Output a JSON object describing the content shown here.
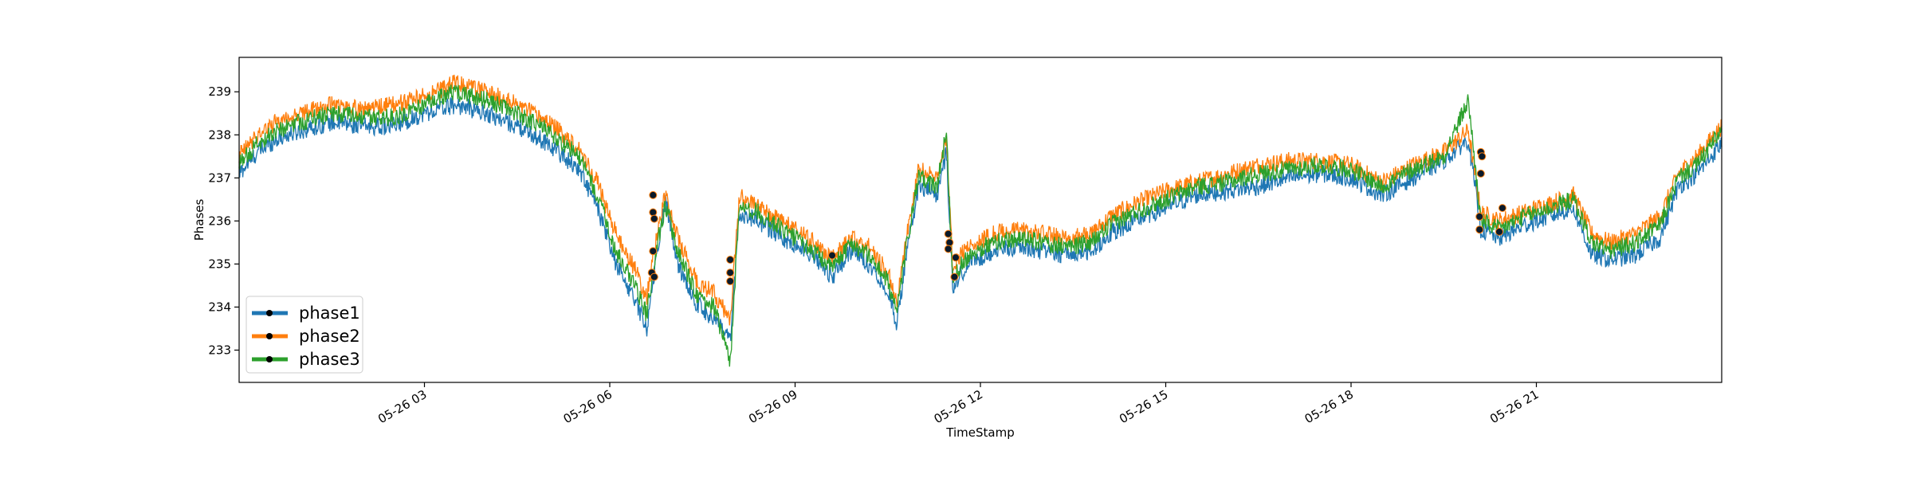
{
  "chart_data": {
    "type": "line",
    "xlabel": "TimeStamp",
    "ylabel": "Phases",
    "xlim": [
      "2023-05-26T00:00",
      "2023-05-26T23:59"
    ],
    "ylim": [
      232.25,
      239.8
    ],
    "xticks": [
      {
        "t": 3,
        "label": "05-26 03"
      },
      {
        "t": 6,
        "label": "05-26 06"
      },
      {
        "t": 9,
        "label": "05-26 09"
      },
      {
        "t": 12,
        "label": "05-26 12"
      },
      {
        "t": 15,
        "label": "05-26 15"
      },
      {
        "t": 18,
        "label": "05-26 18"
      },
      {
        "t": 21,
        "label": "05-26 21"
      }
    ],
    "yticks": [
      233,
      234,
      235,
      236,
      237,
      238,
      239
    ],
    "grid": false,
    "legend_position": "lower-left",
    "series": [
      {
        "name": "phase1",
        "color": "#1f77b4",
        "values": [
          [
            0.0,
            237.1
          ],
          [
            0.3,
            237.6
          ],
          [
            0.6,
            237.9
          ],
          [
            1.0,
            238.1
          ],
          [
            1.5,
            238.3
          ],
          [
            2.0,
            238.2
          ],
          [
            2.5,
            238.2
          ],
          [
            3.0,
            238.5
          ],
          [
            3.5,
            238.7
          ],
          [
            4.0,
            238.5
          ],
          [
            4.5,
            238.2
          ],
          [
            5.0,
            237.8
          ],
          [
            5.5,
            237.2
          ],
          [
            5.8,
            236.3
          ],
          [
            6.1,
            235.0
          ],
          [
            6.4,
            234.2
          ],
          [
            6.6,
            233.5
          ],
          [
            6.7,
            234.6
          ],
          [
            6.9,
            236.5
          ],
          [
            7.1,
            235.0
          ],
          [
            7.4,
            234.1
          ],
          [
            7.7,
            233.7
          ],
          [
            7.95,
            233.2
          ],
          [
            8.1,
            236.2
          ],
          [
            8.4,
            236.0
          ],
          [
            8.8,
            235.6
          ],
          [
            9.3,
            235.2
          ],
          [
            9.6,
            234.7
          ],
          [
            9.9,
            235.3
          ],
          [
            10.2,
            235.0
          ],
          [
            10.5,
            234.4
          ],
          [
            10.65,
            233.6
          ],
          [
            10.8,
            235.2
          ],
          [
            11.0,
            236.8
          ],
          [
            11.3,
            236.6
          ],
          [
            11.45,
            237.6
          ],
          [
            11.55,
            234.5
          ],
          [
            11.8,
            235.0
          ],
          [
            12.2,
            235.3
          ],
          [
            12.6,
            235.4
          ],
          [
            13.0,
            235.3
          ],
          [
            13.4,
            235.2
          ],
          [
            13.8,
            235.3
          ],
          [
            14.1,
            235.7
          ],
          [
            14.5,
            236.0
          ],
          [
            15.0,
            236.3
          ],
          [
            15.5,
            236.6
          ],
          [
            16.0,
            236.7
          ],
          [
            16.5,
            236.8
          ],
          [
            17.0,
            237.0
          ],
          [
            17.5,
            237.1
          ],
          [
            18.0,
            237.0
          ],
          [
            18.5,
            236.6
          ],
          [
            19.0,
            237.0
          ],
          [
            19.5,
            237.4
          ],
          [
            19.9,
            237.9
          ],
          [
            20.1,
            235.8
          ],
          [
            20.4,
            235.6
          ],
          [
            20.8,
            235.9
          ],
          [
            21.2,
            236.1
          ],
          [
            21.6,
            236.3
          ],
          [
            21.9,
            235.2
          ],
          [
            22.2,
            235.1
          ],
          [
            22.6,
            235.2
          ],
          [
            23.0,
            235.6
          ],
          [
            23.3,
            236.8
          ],
          [
            23.6,
            237.1
          ],
          [
            24.0,
            237.8
          ]
        ]
      },
      {
        "name": "phase2",
        "color": "#ff7f0e",
        "values": [
          [
            0.0,
            237.5
          ],
          [
            0.3,
            238.0
          ],
          [
            0.6,
            238.3
          ],
          [
            1.0,
            238.5
          ],
          [
            1.5,
            238.7
          ],
          [
            2.0,
            238.6
          ],
          [
            2.5,
            238.7
          ],
          [
            3.0,
            238.9
          ],
          [
            3.5,
            239.2
          ],
          [
            4.0,
            239.0
          ],
          [
            4.5,
            238.7
          ],
          [
            5.0,
            238.3
          ],
          [
            5.5,
            237.7
          ],
          [
            5.8,
            236.9
          ],
          [
            6.1,
            235.7
          ],
          [
            6.4,
            234.9
          ],
          [
            6.6,
            234.2
          ],
          [
            6.7,
            235.2
          ],
          [
            6.9,
            236.6
          ],
          [
            7.1,
            235.6
          ],
          [
            7.4,
            234.6
          ],
          [
            7.7,
            234.3
          ],
          [
            7.95,
            233.7
          ],
          [
            8.1,
            236.6
          ],
          [
            8.4,
            236.3
          ],
          [
            8.8,
            236.0
          ],
          [
            9.3,
            235.5
          ],
          [
            9.6,
            235.1
          ],
          [
            9.9,
            235.6
          ],
          [
            10.2,
            235.4
          ],
          [
            10.5,
            234.8
          ],
          [
            10.65,
            234.1
          ],
          [
            10.8,
            235.6
          ],
          [
            11.0,
            237.2
          ],
          [
            11.3,
            237.0
          ],
          [
            11.45,
            237.9
          ],
          [
            11.55,
            235.0
          ],
          [
            11.8,
            235.4
          ],
          [
            12.2,
            235.7
          ],
          [
            12.6,
            235.8
          ],
          [
            13.0,
            235.7
          ],
          [
            13.4,
            235.6
          ],
          [
            13.8,
            235.7
          ],
          [
            14.1,
            236.1
          ],
          [
            14.5,
            236.4
          ],
          [
            15.0,
            236.7
          ],
          [
            15.5,
            236.9
          ],
          [
            16.0,
            237.1
          ],
          [
            16.5,
            237.3
          ],
          [
            17.0,
            237.4
          ],
          [
            17.5,
            237.4
          ],
          [
            18.0,
            237.3
          ],
          [
            18.5,
            236.9
          ],
          [
            19.0,
            237.3
          ],
          [
            19.5,
            237.6
          ],
          [
            19.9,
            238.1
          ],
          [
            20.1,
            236.2
          ],
          [
            20.4,
            236.0
          ],
          [
            20.8,
            236.2
          ],
          [
            21.2,
            236.4
          ],
          [
            21.6,
            236.6
          ],
          [
            21.9,
            235.7
          ],
          [
            22.2,
            235.5
          ],
          [
            22.6,
            235.7
          ],
          [
            23.0,
            236.1
          ],
          [
            23.3,
            237.1
          ],
          [
            23.6,
            237.5
          ],
          [
            24.0,
            238.2
          ]
        ]
      },
      {
        "name": "phase3",
        "color": "#2ca02c",
        "values": [
          [
            0.0,
            237.3
          ],
          [
            0.3,
            237.8
          ],
          [
            0.6,
            238.1
          ],
          [
            1.0,
            238.3
          ],
          [
            1.5,
            238.5
          ],
          [
            2.0,
            238.4
          ],
          [
            2.5,
            238.4
          ],
          [
            3.0,
            238.7
          ],
          [
            3.5,
            239.0
          ],
          [
            4.0,
            238.8
          ],
          [
            4.5,
            238.5
          ],
          [
            5.0,
            238.1
          ],
          [
            5.5,
            237.5
          ],
          [
            5.8,
            236.6
          ],
          [
            6.1,
            235.3
          ],
          [
            6.4,
            234.5
          ],
          [
            6.6,
            233.8
          ],
          [
            6.7,
            234.9
          ],
          [
            6.9,
            236.4
          ],
          [
            7.1,
            235.3
          ],
          [
            7.4,
            234.3
          ],
          [
            7.7,
            234.0
          ],
          [
            7.95,
            232.7
          ],
          [
            8.1,
            236.4
          ],
          [
            8.4,
            236.2
          ],
          [
            8.8,
            235.8
          ],
          [
            9.3,
            235.3
          ],
          [
            9.6,
            234.9
          ],
          [
            9.9,
            235.5
          ],
          [
            10.2,
            235.2
          ],
          [
            10.5,
            234.6
          ],
          [
            10.65,
            233.9
          ],
          [
            10.8,
            235.4
          ],
          [
            11.0,
            237.0
          ],
          [
            11.3,
            236.8
          ],
          [
            11.45,
            238.1
          ],
          [
            11.55,
            234.7
          ],
          [
            11.8,
            235.2
          ],
          [
            12.2,
            235.5
          ],
          [
            12.6,
            235.6
          ],
          [
            13.0,
            235.5
          ],
          [
            13.4,
            235.4
          ],
          [
            13.8,
            235.5
          ],
          [
            14.1,
            235.9
          ],
          [
            14.5,
            236.2
          ],
          [
            15.0,
            236.5
          ],
          [
            15.5,
            236.8
          ],
          [
            16.0,
            236.9
          ],
          [
            16.5,
            237.1
          ],
          [
            17.0,
            237.2
          ],
          [
            17.5,
            237.3
          ],
          [
            18.0,
            237.2
          ],
          [
            18.5,
            236.8
          ],
          [
            19.0,
            237.2
          ],
          [
            19.5,
            237.5
          ],
          [
            19.9,
            238.8
          ],
          [
            20.1,
            236.0
          ],
          [
            20.4,
            235.8
          ],
          [
            20.8,
            236.1
          ],
          [
            21.2,
            236.3
          ],
          [
            21.6,
            236.5
          ],
          [
            21.9,
            235.5
          ],
          [
            22.2,
            235.3
          ],
          [
            22.6,
            235.5
          ],
          [
            23.0,
            235.9
          ],
          [
            23.3,
            237.0
          ],
          [
            23.6,
            237.3
          ],
          [
            24.0,
            238.1
          ]
        ]
      }
    ],
    "markers": [
      {
        "x": 6.7,
        "y": 236.6
      },
      {
        "x": 6.7,
        "y": 236.2
      },
      {
        "x": 6.72,
        "y": 236.05
      },
      {
        "x": 6.7,
        "y": 235.3
      },
      {
        "x": 6.68,
        "y": 234.8
      },
      {
        "x": 6.72,
        "y": 234.7
      },
      {
        "x": 7.95,
        "y": 235.1
      },
      {
        "x": 7.95,
        "y": 234.8
      },
      {
        "x": 7.95,
        "y": 234.6
      },
      {
        "x": 9.6,
        "y": 235.2
      },
      {
        "x": 11.48,
        "y": 235.7
      },
      {
        "x": 11.5,
        "y": 235.5
      },
      {
        "x": 11.48,
        "y": 235.35
      },
      {
        "x": 11.6,
        "y": 235.15
      },
      {
        "x": 11.58,
        "y": 234.7
      },
      {
        "x": 20.1,
        "y": 237.6
      },
      {
        "x": 20.12,
        "y": 237.5
      },
      {
        "x": 20.1,
        "y": 237.1
      },
      {
        "x": 20.08,
        "y": 236.1
      },
      {
        "x": 20.08,
        "y": 235.8
      },
      {
        "x": 20.45,
        "y": 236.3
      },
      {
        "x": 20.4,
        "y": 235.75
      }
    ]
  }
}
